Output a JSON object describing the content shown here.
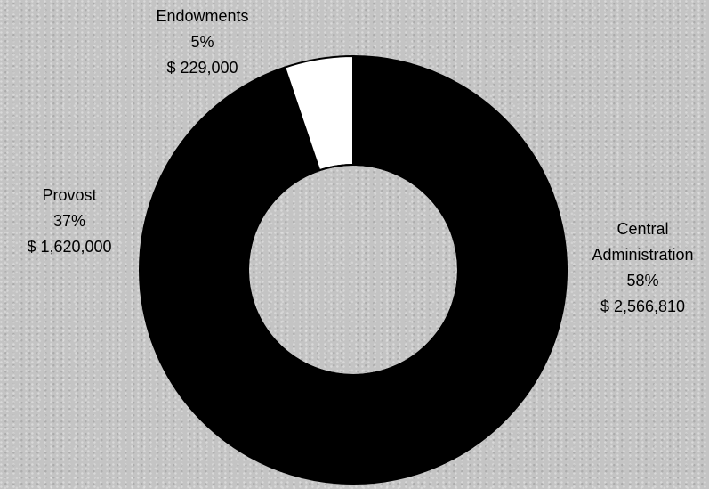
{
  "chart_data": {
    "type": "pie",
    "variant": "donut",
    "slices": [
      {
        "name": "Central Administration",
        "percent": 58,
        "amount": "$ 2,566,810",
        "value": 2566810,
        "color": "#000000"
      },
      {
        "name": "Provost",
        "percent": 37,
        "amount": "$ 1,620,000",
        "value": 1620000,
        "color": "#000000"
      },
      {
        "name": "Endowments",
        "percent": 5,
        "amount": "$ 229,000",
        "value": 229000,
        "color": "#ffffff"
      }
    ],
    "labels": [
      {
        "lines": [
          "Endowments",
          "5%",
          "$ 229,000"
        ]
      },
      {
        "lines": [
          "Provost",
          "37%",
          "$ 1,620,000"
        ]
      },
      {
        "lines": [
          "Central",
          "Administration",
          "58%",
          "$ 2,566,810"
        ]
      }
    ]
  }
}
